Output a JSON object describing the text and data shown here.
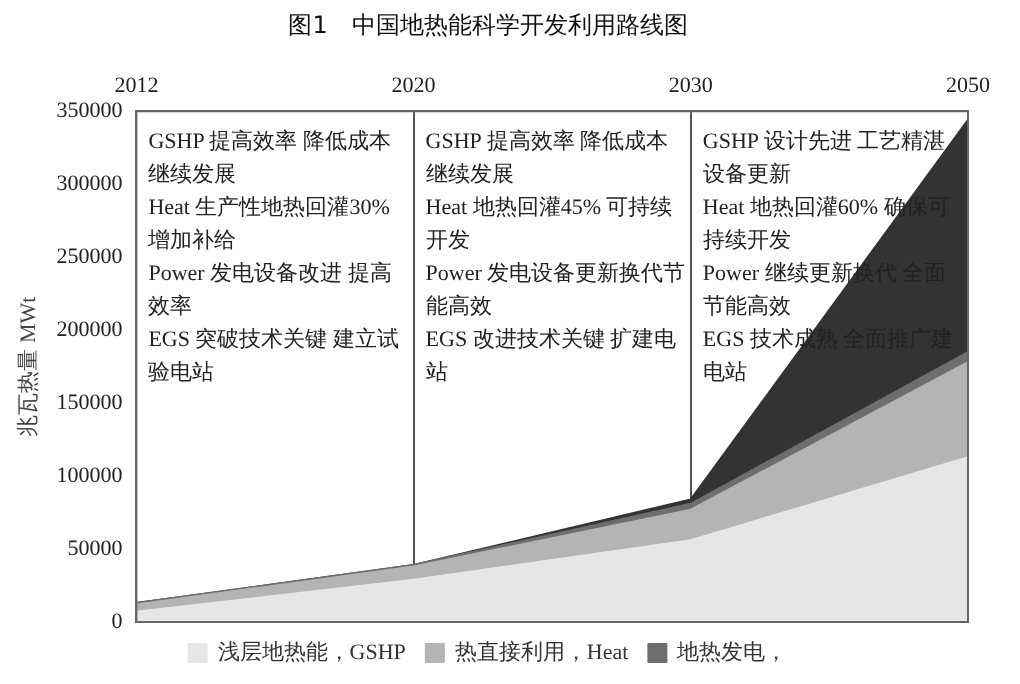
{
  "chart_data": {
    "type": "area",
    "stacked": true,
    "title": "图1　中国地热能科学开发利用路线图",
    "ylabel": "兆瓦热量 MWt",
    "categories": [
      "2012",
      "2020",
      "2030",
      "2050"
    ],
    "series": [
      {
        "name": "浅层地热能，GSHP",
        "color": "#e6e6e6",
        "values": [
          7000,
          29000,
          56000,
          113000
        ]
      },
      {
        "name": "热直接利用，Heat",
        "color": "#b4b4b4",
        "values": [
          5000,
          9000,
          21000,
          65000
        ]
      },
      {
        "name": "地热发电，",
        "color": "#6e6e6e",
        "values": [
          1000,
          1000,
          4000,
          7000
        ]
      },
      {
        "color": "#333333",
        "values": [
          0,
          0,
          3000,
          159000
        ]
      }
    ],
    "ylim": [
      0,
      350000
    ],
    "yticks": [
      0,
      50000,
      100000,
      150000,
      200000,
      250000,
      300000,
      350000
    ],
    "grid": "x",
    "legend": "bottom",
    "annotations": [
      "GSHP 提高效率 降低成本继续发展\nHeat 生产性地热回灌30%增加补给\nPower 发电设备改进 提高效率\nEGS 突破技术关键 建立试验电站",
      "GSHP 提高效率 降低成本继续发展\nHeat 地热回灌45% 可持续开发\nPower 发电设备更新换代节能高效\nEGS 改进技术关键 扩建电站",
      "GSHP 设计先进 工艺精湛设备更新\nHeat 地热回灌60% 确保可持续开发\nPower 继续更新换代 全面节能高效\nEGS 技术成熟 全面推广建电站"
    ]
  }
}
